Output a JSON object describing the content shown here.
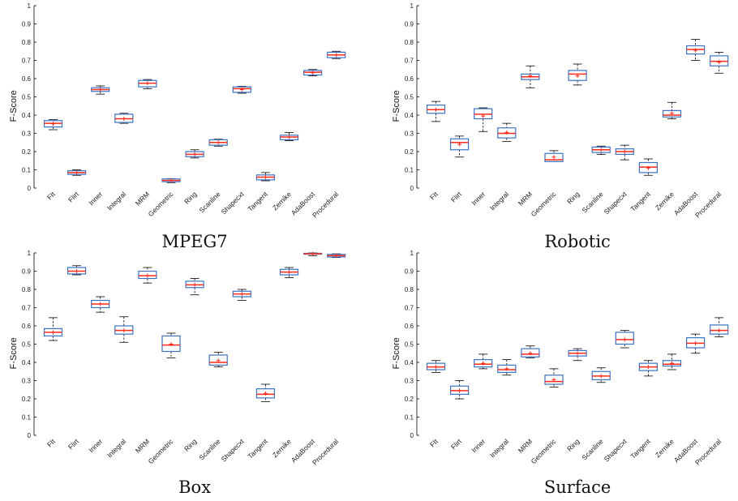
{
  "figure": {
    "colors": {
      "box": "#3a73c4",
      "median": "#ff2a1a",
      "mean": "#ff2a1a",
      "whisker": "#000000"
    }
  },
  "chart_data": [
    {
      "type": "box",
      "title": "MPEG7",
      "ylabel": "F-Score",
      "ylim": [
        0,
        1
      ],
      "yticks": [
        "0",
        "0.1",
        "0.2",
        "0.3",
        "0.4",
        "0.5",
        "0.6",
        "0.7",
        "0.8",
        "0.9",
        "1"
      ],
      "categories": [
        "FIt",
        "Flirt",
        "Inner",
        "Integral",
        "MRM",
        "Geometric",
        "Ring",
        "Scanline",
        "Shapecxt",
        "Tangent",
        "Zernike",
        "AdaBoost",
        "Procedural"
      ],
      "boxes": [
        {
          "min": 0.32,
          "q1": 0.335,
          "median": 0.355,
          "q3": 0.37,
          "max": 0.375,
          "mean": 0.352
        },
        {
          "min": 0.07,
          "q1": 0.075,
          "median": 0.085,
          "q3": 0.095,
          "max": 0.1,
          "mean": 0.085
        },
        {
          "min": 0.515,
          "q1": 0.53,
          "median": 0.54,
          "q3": 0.55,
          "max": 0.56,
          "mean": 0.54
        },
        {
          "min": 0.355,
          "q1": 0.36,
          "median": 0.38,
          "q3": 0.405,
          "max": 0.41,
          "mean": 0.38
        },
        {
          "min": 0.545,
          "q1": 0.555,
          "median": 0.575,
          "q3": 0.59,
          "max": 0.595,
          "mean": 0.575
        },
        {
          "min": 0.03,
          "q1": 0.035,
          "median": 0.042,
          "q3": 0.05,
          "max": 0.052,
          "mean": 0.042
        },
        {
          "min": 0.165,
          "q1": 0.172,
          "median": 0.185,
          "q3": 0.2,
          "max": 0.21,
          "mean": 0.185
        },
        {
          "min": 0.23,
          "q1": 0.235,
          "median": 0.25,
          "q3": 0.265,
          "max": 0.268,
          "mean": 0.25
        },
        {
          "min": 0.52,
          "q1": 0.525,
          "median": 0.545,
          "q3": 0.555,
          "max": 0.558,
          "mean": 0.54
        },
        {
          "min": 0.04,
          "q1": 0.045,
          "median": 0.06,
          "q3": 0.072,
          "max": 0.085,
          "mean": 0.06
        },
        {
          "min": 0.26,
          "q1": 0.265,
          "median": 0.28,
          "q3": 0.29,
          "max": 0.305,
          "mean": 0.28
        },
        {
          "min": 0.615,
          "q1": 0.62,
          "median": 0.635,
          "q3": 0.645,
          "max": 0.65,
          "mean": 0.632
        },
        {
          "min": 0.71,
          "q1": 0.715,
          "median": 0.73,
          "q3": 0.745,
          "max": 0.75,
          "mean": 0.73
        }
      ]
    },
    {
      "type": "box",
      "title": "Robotic",
      "ylabel": "F-Score",
      "ylim": [
        0,
        1
      ],
      "yticks": [
        "0",
        "0.1",
        "0.2",
        "0.3",
        "0.4",
        "0.5",
        "0.6",
        "0.7",
        "0.8",
        "0.9",
        "1"
      ],
      "categories": [
        "FIt",
        "Flirt",
        "Inner",
        "Integral",
        "MRM",
        "Geometric",
        "Ring",
        "Scanline",
        "Shapecxt",
        "Tangent",
        "Zernike",
        "AdaBoost",
        "Procedural"
      ],
      "boxes": [
        {
          "min": 0.365,
          "q1": 0.41,
          "median": 0.43,
          "q3": 0.455,
          "max": 0.475,
          "mean": 0.43
        },
        {
          "min": 0.17,
          "q1": 0.21,
          "median": 0.25,
          "q3": 0.27,
          "max": 0.285,
          "mean": 0.24
        },
        {
          "min": 0.31,
          "q1": 0.38,
          "median": 0.405,
          "q3": 0.435,
          "max": 0.44,
          "mean": 0.395
        },
        {
          "min": 0.255,
          "q1": 0.275,
          "median": 0.3,
          "q3": 0.33,
          "max": 0.355,
          "mean": 0.305
        },
        {
          "min": 0.55,
          "q1": 0.595,
          "median": 0.61,
          "q3": 0.625,
          "max": 0.67,
          "mean": 0.615
        },
        {
          "min": 0.145,
          "q1": 0.145,
          "median": 0.155,
          "q3": 0.19,
          "max": 0.205,
          "mean": 0.17
        },
        {
          "min": 0.565,
          "q1": 0.59,
          "median": 0.625,
          "q3": 0.645,
          "max": 0.68,
          "mean": 0.615
        },
        {
          "min": 0.185,
          "q1": 0.195,
          "median": 0.21,
          "q3": 0.225,
          "max": 0.23,
          "mean": 0.21
        },
        {
          "min": 0.155,
          "q1": 0.185,
          "median": 0.2,
          "q3": 0.215,
          "max": 0.235,
          "mean": 0.2
        },
        {
          "min": 0.07,
          "q1": 0.085,
          "median": 0.115,
          "q3": 0.14,
          "max": 0.16,
          "mean": 0.11
        },
        {
          "min": 0.38,
          "q1": 0.39,
          "median": 0.4,
          "q3": 0.425,
          "max": 0.47,
          "mean": 0.41
        },
        {
          "min": 0.7,
          "q1": 0.735,
          "median": 0.76,
          "q3": 0.78,
          "max": 0.815,
          "mean": 0.755
        },
        {
          "min": 0.63,
          "q1": 0.67,
          "median": 0.695,
          "q3": 0.725,
          "max": 0.745,
          "mean": 0.69
        }
      ]
    },
    {
      "type": "box",
      "title": "Box",
      "ylabel": "F-Score",
      "ylim": [
        0,
        1
      ],
      "yticks": [
        "0",
        "0.1",
        "0.2",
        "0.3",
        "0.4",
        "0.5",
        "0.6",
        "0.7",
        "0.8",
        "0.9",
        "1"
      ],
      "categories": [
        "FIt",
        "Flirt",
        "Inner",
        "Integral",
        "MRM",
        "Geometric",
        "Ring",
        "Scanline",
        "Shapecxt",
        "Tangent",
        "Zernike",
        "AdaBoost",
        "Procedural"
      ],
      "boxes": [
        {
          "min": 0.52,
          "q1": 0.545,
          "median": 0.565,
          "q3": 0.585,
          "max": 0.645,
          "mean": 0.565
        },
        {
          "min": 0.88,
          "q1": 0.885,
          "median": 0.9,
          "q3": 0.92,
          "max": 0.93,
          "mean": 0.9
        },
        {
          "min": 0.675,
          "q1": 0.7,
          "median": 0.72,
          "q3": 0.74,
          "max": 0.76,
          "mean": 0.72
        },
        {
          "min": 0.51,
          "q1": 0.555,
          "median": 0.575,
          "q3": 0.6,
          "max": 0.65,
          "mean": 0.575
        },
        {
          "min": 0.835,
          "q1": 0.86,
          "median": 0.875,
          "q3": 0.9,
          "max": 0.92,
          "mean": 0.875
        },
        {
          "min": 0.425,
          "q1": 0.46,
          "median": 0.495,
          "q3": 0.545,
          "max": 0.56,
          "mean": 0.5
        },
        {
          "min": 0.77,
          "q1": 0.81,
          "median": 0.825,
          "q3": 0.845,
          "max": 0.86,
          "mean": 0.825
        },
        {
          "min": 0.375,
          "q1": 0.385,
          "median": 0.4,
          "q3": 0.44,
          "max": 0.455,
          "mean": 0.41
        },
        {
          "min": 0.74,
          "q1": 0.76,
          "median": 0.775,
          "q3": 0.79,
          "max": 0.8,
          "mean": 0.775
        },
        {
          "min": 0.185,
          "q1": 0.205,
          "median": 0.225,
          "q3": 0.255,
          "max": 0.28,
          "mean": 0.23
        },
        {
          "min": 0.865,
          "q1": 0.88,
          "median": 0.895,
          "q3": 0.91,
          "max": 0.92,
          "mean": 0.895
        },
        {
          "min": 0.985,
          "q1": 0.993,
          "median": 0.995,
          "q3": 0.998,
          "max": 1.0,
          "mean": 0.995
        },
        {
          "min": 0.975,
          "q1": 0.978,
          "median": 0.985,
          "q3": 0.992,
          "max": 0.995,
          "mean": 0.985
        }
      ]
    },
    {
      "type": "box",
      "title": "Surface",
      "ylabel": "F-Score",
      "ylim": [
        0,
        1
      ],
      "yticks": [
        "0",
        "0.1",
        "0.2",
        "0.3",
        "0.4",
        "0.5",
        "0.6",
        "0.7",
        "0.8",
        "0.9",
        "1"
      ],
      "categories": [
        "FIt",
        "Flirt",
        "Inner",
        "Integral",
        "MRM",
        "Geometric",
        "Ring",
        "Scanline",
        "Shapecxt",
        "Tangent",
        "Zernike",
        "AdaBoost",
        "Procedural"
      ],
      "boxes": [
        {
          "min": 0.345,
          "q1": 0.36,
          "median": 0.375,
          "q3": 0.395,
          "max": 0.41,
          "mean": 0.375
        },
        {
          "min": 0.2,
          "q1": 0.225,
          "median": 0.245,
          "q3": 0.27,
          "max": 0.3,
          "mean": 0.245
        },
        {
          "min": 0.365,
          "q1": 0.375,
          "median": 0.39,
          "q3": 0.415,
          "max": 0.445,
          "mean": 0.395
        },
        {
          "min": 0.33,
          "q1": 0.345,
          "median": 0.36,
          "q3": 0.385,
          "max": 0.415,
          "mean": 0.365
        },
        {
          "min": 0.425,
          "q1": 0.43,
          "median": 0.445,
          "q3": 0.475,
          "max": 0.49,
          "mean": 0.45
        },
        {
          "min": 0.265,
          "q1": 0.28,
          "median": 0.295,
          "q3": 0.33,
          "max": 0.365,
          "mean": 0.305
        },
        {
          "min": 0.41,
          "q1": 0.435,
          "median": 0.45,
          "q3": 0.465,
          "max": 0.475,
          "mean": 0.45
        },
        {
          "min": 0.29,
          "q1": 0.305,
          "median": 0.325,
          "q3": 0.35,
          "max": 0.37,
          "mean": 0.325
        },
        {
          "min": 0.48,
          "q1": 0.5,
          "median": 0.525,
          "q3": 0.565,
          "max": 0.575,
          "mean": 0.525
        },
        {
          "min": 0.325,
          "q1": 0.355,
          "median": 0.375,
          "q3": 0.395,
          "max": 0.41,
          "mean": 0.375
        },
        {
          "min": 0.36,
          "q1": 0.38,
          "median": 0.39,
          "q3": 0.41,
          "max": 0.445,
          "mean": 0.395
        },
        {
          "min": 0.45,
          "q1": 0.48,
          "median": 0.505,
          "q3": 0.535,
          "max": 0.555,
          "mean": 0.505
        },
        {
          "min": 0.54,
          "q1": 0.555,
          "median": 0.575,
          "q3": 0.605,
          "max": 0.645,
          "mean": 0.575
        }
      ]
    }
  ]
}
